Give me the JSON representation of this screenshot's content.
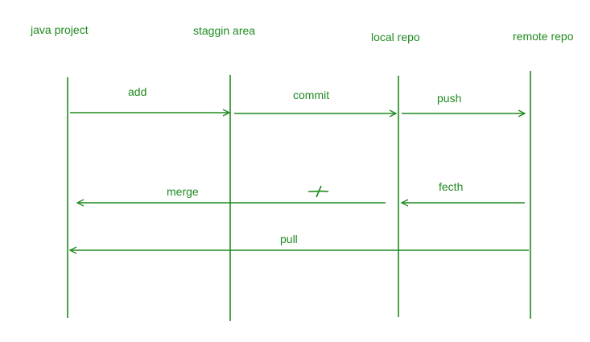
{
  "colors": {
    "stroke": "#1f8a1f",
    "text": "#1f8a1f",
    "background": "#ffffff"
  },
  "lanes": {
    "java_project": "java project",
    "staging_area": "staggin area",
    "local_repo": "local repo",
    "remote_repo": "remote repo"
  },
  "arrows": {
    "add": "add",
    "commit": "commit",
    "push": "push",
    "merge": "merge",
    "fetch": "fecth",
    "pull": "pull"
  }
}
